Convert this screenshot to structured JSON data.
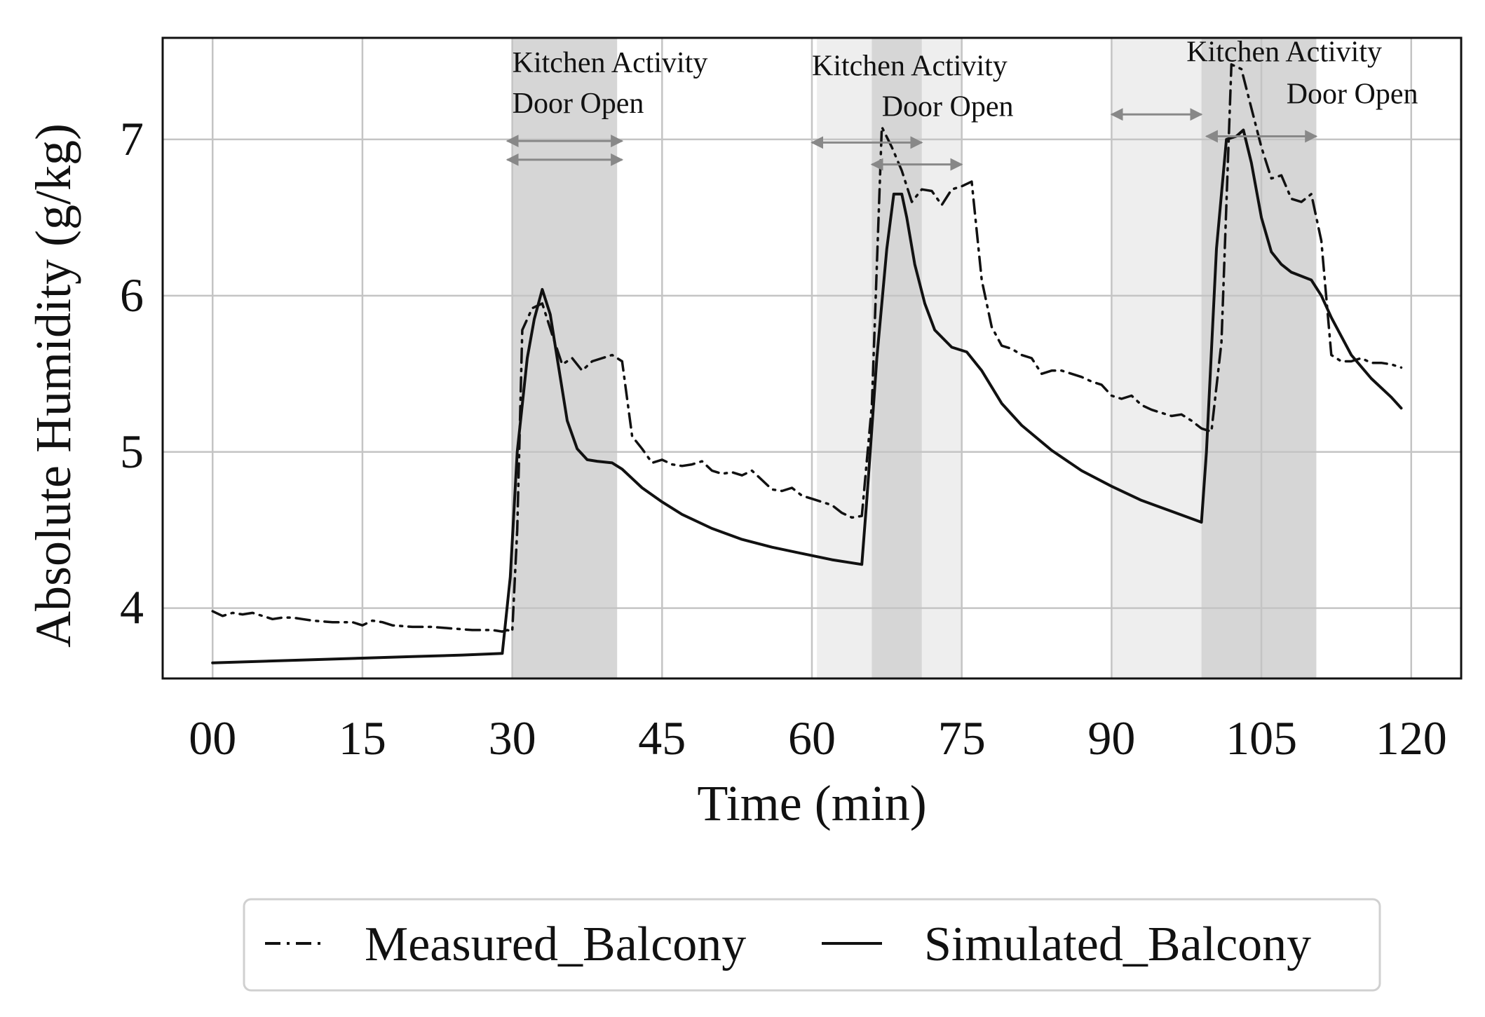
{
  "chart_data": {
    "type": "line",
    "title": "",
    "xlabel": "Time (min)",
    "ylabel": "Absolute Humidity (g/kg)",
    "xlim": [
      -5,
      125
    ],
    "ylim": [
      3.55,
      7.65
    ],
    "xticks": [
      0,
      15,
      30,
      45,
      60,
      75,
      90,
      105,
      120
    ],
    "xtick_labels": [
      "00",
      "15",
      "30",
      "45",
      "60",
      "75",
      "90",
      "105",
      "120"
    ],
    "yticks": [
      4,
      5,
      6,
      7
    ],
    "ytick_labels": [
      "4",
      "5",
      "6",
      "7"
    ],
    "grid": true,
    "shaded_regions": [
      {
        "name": "kitchen-activity-1",
        "x0": 30,
        "x1": 40.5,
        "shade": "dark"
      },
      {
        "name": "kitchen-activity-2",
        "x0": 60.5,
        "x1": 75,
        "shade": "light"
      },
      {
        "name": "door-open-2",
        "x0": 66,
        "x1": 71,
        "shade": "dark"
      },
      {
        "name": "kitchen-activity-3",
        "x0": 90,
        "x1": 99,
        "shade": "light"
      },
      {
        "name": "door-open-3",
        "x0": 99,
        "x1": 110.5,
        "shade": "dark"
      }
    ],
    "annotations": [
      {
        "text": "Kitchen Activity",
        "x": 30,
        "y": 7.43
      },
      {
        "text": "Door Open",
        "x": 30,
        "y": 7.17
      },
      {
        "text": "Kitchen Activity",
        "x": 60,
        "y": 7.41
      },
      {
        "text": "Door Open",
        "x": 67,
        "y": 7.15
      },
      {
        "text": "Kitchen Activity",
        "x": 97.5,
        "y": 7.5
      },
      {
        "text": "Door Open",
        "x": 107.5,
        "y": 7.23
      }
    ],
    "arrows": [
      {
        "x0": 29.5,
        "x1": 41,
        "y": 6.99
      },
      {
        "x0": 29.5,
        "x1": 41,
        "y": 6.87
      },
      {
        "x0": 60,
        "x1": 71,
        "y": 6.98
      },
      {
        "x0": 66,
        "x1": 75,
        "y": 6.84
      },
      {
        "x0": 90,
        "x1": 99,
        "y": 7.16
      },
      {
        "x0": 99.5,
        "x1": 110.5,
        "y": 7.02
      }
    ],
    "series": [
      {
        "name": "Measured_Balcony",
        "style": "dash-dot",
        "x": [
          0,
          1,
          2,
          3,
          4,
          5,
          6,
          7,
          8,
          9,
          10,
          12,
          14,
          15,
          16,
          17,
          18,
          20,
          22,
          24,
          26,
          28,
          29,
          29.5,
          30,
          30.5,
          31,
          32,
          33,
          34,
          35,
          36,
          37,
          38,
          39,
          40,
          41,
          42,
          43,
          44,
          45,
          46,
          47,
          48,
          49,
          50,
          51,
          52,
          53,
          54,
          55,
          56,
          57,
          58,
          59,
          60,
          61,
          62,
          63,
          64,
          65,
          66,
          67,
          68,
          69,
          70,
          71,
          72,
          73,
          74,
          75,
          76,
          77,
          78,
          79,
          80,
          81,
          82,
          83,
          84,
          85,
          86,
          87,
          88,
          89,
          90,
          91,
          92,
          93,
          94,
          95,
          96,
          97,
          98,
          99,
          100,
          101,
          102,
          103,
          104,
          105,
          106,
          107,
          108,
          109,
          110,
          111,
          112,
          113,
          114,
          115,
          116,
          117,
          118,
          119
        ],
        "y": [
          3.98,
          3.95,
          3.97,
          3.96,
          3.97,
          3.95,
          3.93,
          3.94,
          3.94,
          3.93,
          3.92,
          3.91,
          3.91,
          3.89,
          3.92,
          3.91,
          3.89,
          3.88,
          3.88,
          3.87,
          3.86,
          3.86,
          3.85,
          3.86,
          3.85,
          4.5,
          5.78,
          5.92,
          5.95,
          5.75,
          5.56,
          5.6,
          5.52,
          5.58,
          5.6,
          5.62,
          5.58,
          5.1,
          5.02,
          4.93,
          4.95,
          4.92,
          4.91,
          4.92,
          4.94,
          4.88,
          4.86,
          4.87,
          4.85,
          4.88,
          4.82,
          4.76,
          4.75,
          4.77,
          4.72,
          4.7,
          4.68,
          4.66,
          4.61,
          4.58,
          4.59,
          5.3,
          7.08,
          6.95,
          6.8,
          6.6,
          6.68,
          6.67,
          6.58,
          6.68,
          6.7,
          6.73,
          6.1,
          5.8,
          5.68,
          5.66,
          5.62,
          5.6,
          5.5,
          5.52,
          5.52,
          5.5,
          5.48,
          5.45,
          5.43,
          5.36,
          5.34,
          5.36,
          5.3,
          5.27,
          5.25,
          5.23,
          5.24,
          5.2,
          5.15,
          5.13,
          5.7,
          7.48,
          7.45,
          7.2,
          6.95,
          6.75,
          6.77,
          6.62,
          6.6,
          6.65,
          6.35,
          5.62,
          5.58,
          5.58,
          5.6,
          5.57,
          5.57,
          5.56,
          5.54
        ]
      },
      {
        "name": "Simulated_Balcony",
        "style": "solid",
        "x": [
          0,
          5,
          10,
          15,
          20,
          25,
          29,
          29.8,
          30.5,
          31.5,
          32.2,
          33,
          33.8,
          34.5,
          35.5,
          36.5,
          37.5,
          38.5,
          40,
          41,
          42,
          43,
          45,
          47,
          50,
          53,
          56,
          59,
          62,
          65,
          65.5,
          66.5,
          67.5,
          68.2,
          69,
          69.5,
          70.3,
          71.3,
          72.3,
          74,
          75.5,
          77,
          79,
          81,
          84,
          87,
          90,
          93,
          96,
          99,
          99.5,
          100.5,
          101.5,
          102.5,
          103.2,
          104,
          105,
          106,
          107,
          108,
          110,
          111,
          112,
          114,
          116,
          118,
          119
        ],
        "y": [
          3.65,
          3.66,
          3.67,
          3.68,
          3.69,
          3.7,
          3.71,
          4.2,
          5.0,
          5.6,
          5.85,
          6.04,
          5.88,
          5.6,
          5.2,
          5.02,
          4.95,
          4.94,
          4.93,
          4.89,
          4.83,
          4.77,
          4.68,
          4.6,
          4.51,
          4.44,
          4.39,
          4.35,
          4.31,
          4.28,
          4.7,
          5.6,
          6.3,
          6.65,
          6.65,
          6.5,
          6.2,
          5.95,
          5.78,
          5.67,
          5.64,
          5.52,
          5.31,
          5.17,
          5.01,
          4.88,
          4.78,
          4.69,
          4.62,
          4.55,
          5.0,
          6.3,
          7.0,
          7.02,
          7.06,
          6.85,
          6.5,
          6.28,
          6.2,
          6.15,
          6.1,
          6.0,
          5.86,
          5.62,
          5.47,
          5.35,
          5.28
        ]
      }
    ],
    "legend": {
      "placement": "bottom-center",
      "entries": [
        "Measured_Balcony",
        "Simulated_Balcony"
      ]
    }
  }
}
